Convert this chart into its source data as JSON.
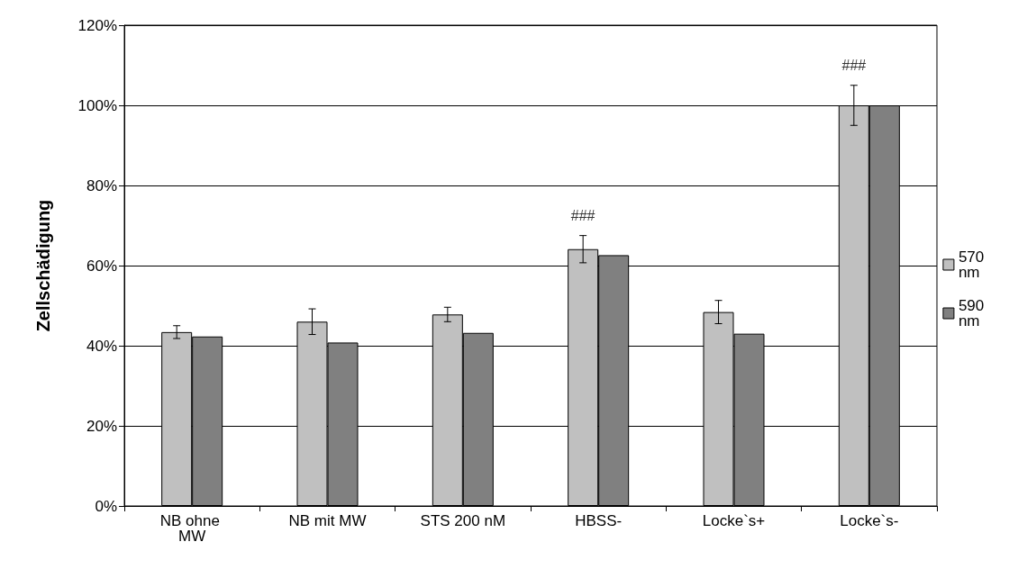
{
  "chart_data": {
    "type": "bar",
    "ylabel": "Zellschädigung",
    "categories": [
      "NB ohne MW",
      "NB mit MW",
      "STS 200 nM",
      "HBSS-",
      "Locke`s+",
      "Locke`s-"
    ],
    "series": [
      {
        "name": "570 nm",
        "color": "#c0c0c0",
        "values": [
          43.4,
          46,
          47.8,
          64.1,
          48.4,
          100
        ],
        "errors": [
          1.6,
          3.2,
          1.8,
          3.4,
          2.9,
          5
        ]
      },
      {
        "name": "590 nm",
        "color": "#808080",
        "values": [
          42.3,
          40.8,
          43.2,
          62.6,
          43,
          100
        ]
      }
    ],
    "ylim": [
      0,
      120
    ],
    "yticks": [
      {
        "value": 0,
        "label": "0%"
      },
      {
        "value": 20,
        "label": "20%"
      },
      {
        "value": 40,
        "label": "40%"
      },
      {
        "value": 60,
        "label": "60%"
      },
      {
        "value": 80,
        "label": "80%"
      },
      {
        "value": 100,
        "label": "100%"
      },
      {
        "value": 120,
        "label": "120%"
      }
    ],
    "grid": "y",
    "legend": "right",
    "annotations": [
      {
        "text": "###",
        "x": "HBSS-",
        "y": 64.1
      },
      {
        "text": "###",
        "x": "Locke`s-",
        "y": 100
      }
    ]
  }
}
